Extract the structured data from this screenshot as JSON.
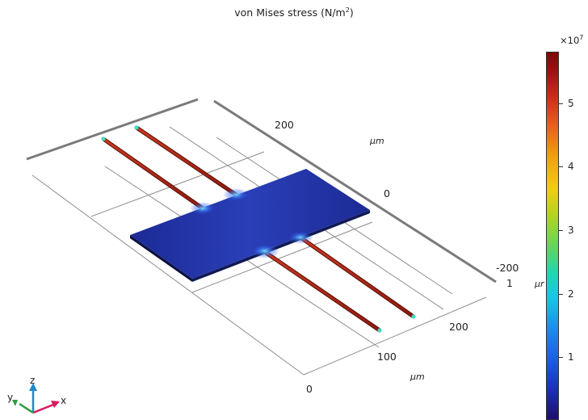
{
  "title": {
    "text": "von Mises stress (N/m",
    "sup": "2",
    "close": ")"
  },
  "colorbar": {
    "multiplier_base": "×10",
    "multiplier_exp": "7",
    "ticks": [
      "5",
      "4",
      "3",
      "2",
      "1"
    ]
  },
  "axes": {
    "y_ticks": [
      "200",
      "0",
      "-200"
    ],
    "y_unit": "μm",
    "x_ticks": [
      "200",
      "100",
      "0"
    ],
    "x_unit": "μm",
    "z_stub": "1",
    "z_unit_stub": "μr"
  },
  "triad": {
    "x": "x",
    "y": "y",
    "z": "z"
  },
  "colors": {
    "plate": "#1f2e9a",
    "beam": "#b8301d",
    "grid": "#888888",
    "frame": "#7a7a7a",
    "triad_x": "#d81b60",
    "triad_y": "#2e9d3a",
    "triad_z": "#1e88c8"
  }
}
